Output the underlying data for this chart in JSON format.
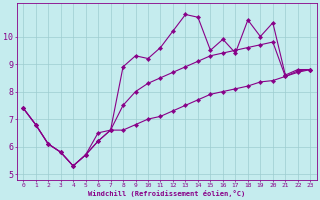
{
  "xlabel": "Windchill (Refroidissement éolien,°C)",
  "background_color": "#c5ecee",
  "grid_color": "#9ecdd0",
  "line_color": "#880088",
  "x": [
    0,
    1,
    2,
    3,
    4,
    5,
    6,
    7,
    8,
    9,
    10,
    11,
    12,
    13,
    14,
    15,
    16,
    17,
    18,
    19,
    20,
    21,
    22,
    23
  ],
  "y_top": [
    7.4,
    6.8,
    6.1,
    5.8,
    5.3,
    5.7,
    6.5,
    6.6,
    8.9,
    9.3,
    9.2,
    9.6,
    10.2,
    10.8,
    10.7,
    9.5,
    9.9,
    9.4,
    10.6,
    10.0,
    10.5,
    8.6,
    8.8,
    8.8
  ],
  "y_mid": [
    7.4,
    6.8,
    6.1,
    5.8,
    5.3,
    5.7,
    6.2,
    6.6,
    7.5,
    8.0,
    8.3,
    8.5,
    8.7,
    8.9,
    9.1,
    9.3,
    9.4,
    9.5,
    9.6,
    9.7,
    9.8,
    8.55,
    8.75,
    8.8
  ],
  "y_bot": [
    7.4,
    6.8,
    6.1,
    5.8,
    5.3,
    5.7,
    6.2,
    6.6,
    6.6,
    6.8,
    7.0,
    7.1,
    7.3,
    7.5,
    7.7,
    7.9,
    8.0,
    8.1,
    8.2,
    8.35,
    8.4,
    8.55,
    8.7,
    8.8
  ],
  "ylim": [
    4.8,
    11.2
  ],
  "yticks": [
    5,
    6,
    7,
    8,
    9,
    10
  ],
  "xticks": [
    0,
    1,
    2,
    3,
    4,
    5,
    6,
    7,
    8,
    9,
    10,
    11,
    12,
    13,
    14,
    15,
    16,
    17,
    18,
    19,
    20,
    21,
    22,
    23
  ],
  "marker": "D",
  "markersize": 2.2,
  "linewidth": 0.8,
  "xlabel_fontsize": 5.0,
  "xtick_fontsize": 4.5,
  "ytick_fontsize": 6.0
}
